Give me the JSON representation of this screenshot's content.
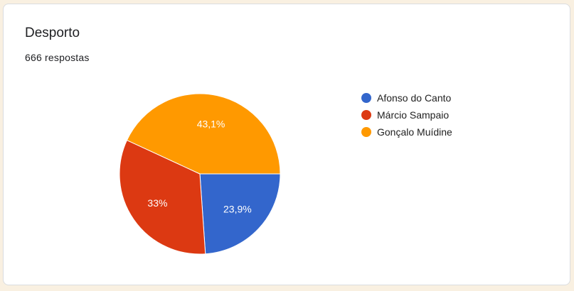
{
  "card": {
    "title": "Desporto",
    "subtitle": "666 respostas"
  },
  "chart_data": {
    "type": "pie",
    "title": "Desporto",
    "categories": [
      "Afonso do Canto",
      "Márcio Sampaio",
      "Gonçalo Muídine"
    ],
    "values": [
      23.9,
      33,
      43.1
    ],
    "labels": [
      "23,9%",
      "33%",
      "43,1%"
    ],
    "colors": [
      "#3366cc",
      "#dc3912",
      "#ff9900"
    ],
    "legend": "right"
  }
}
